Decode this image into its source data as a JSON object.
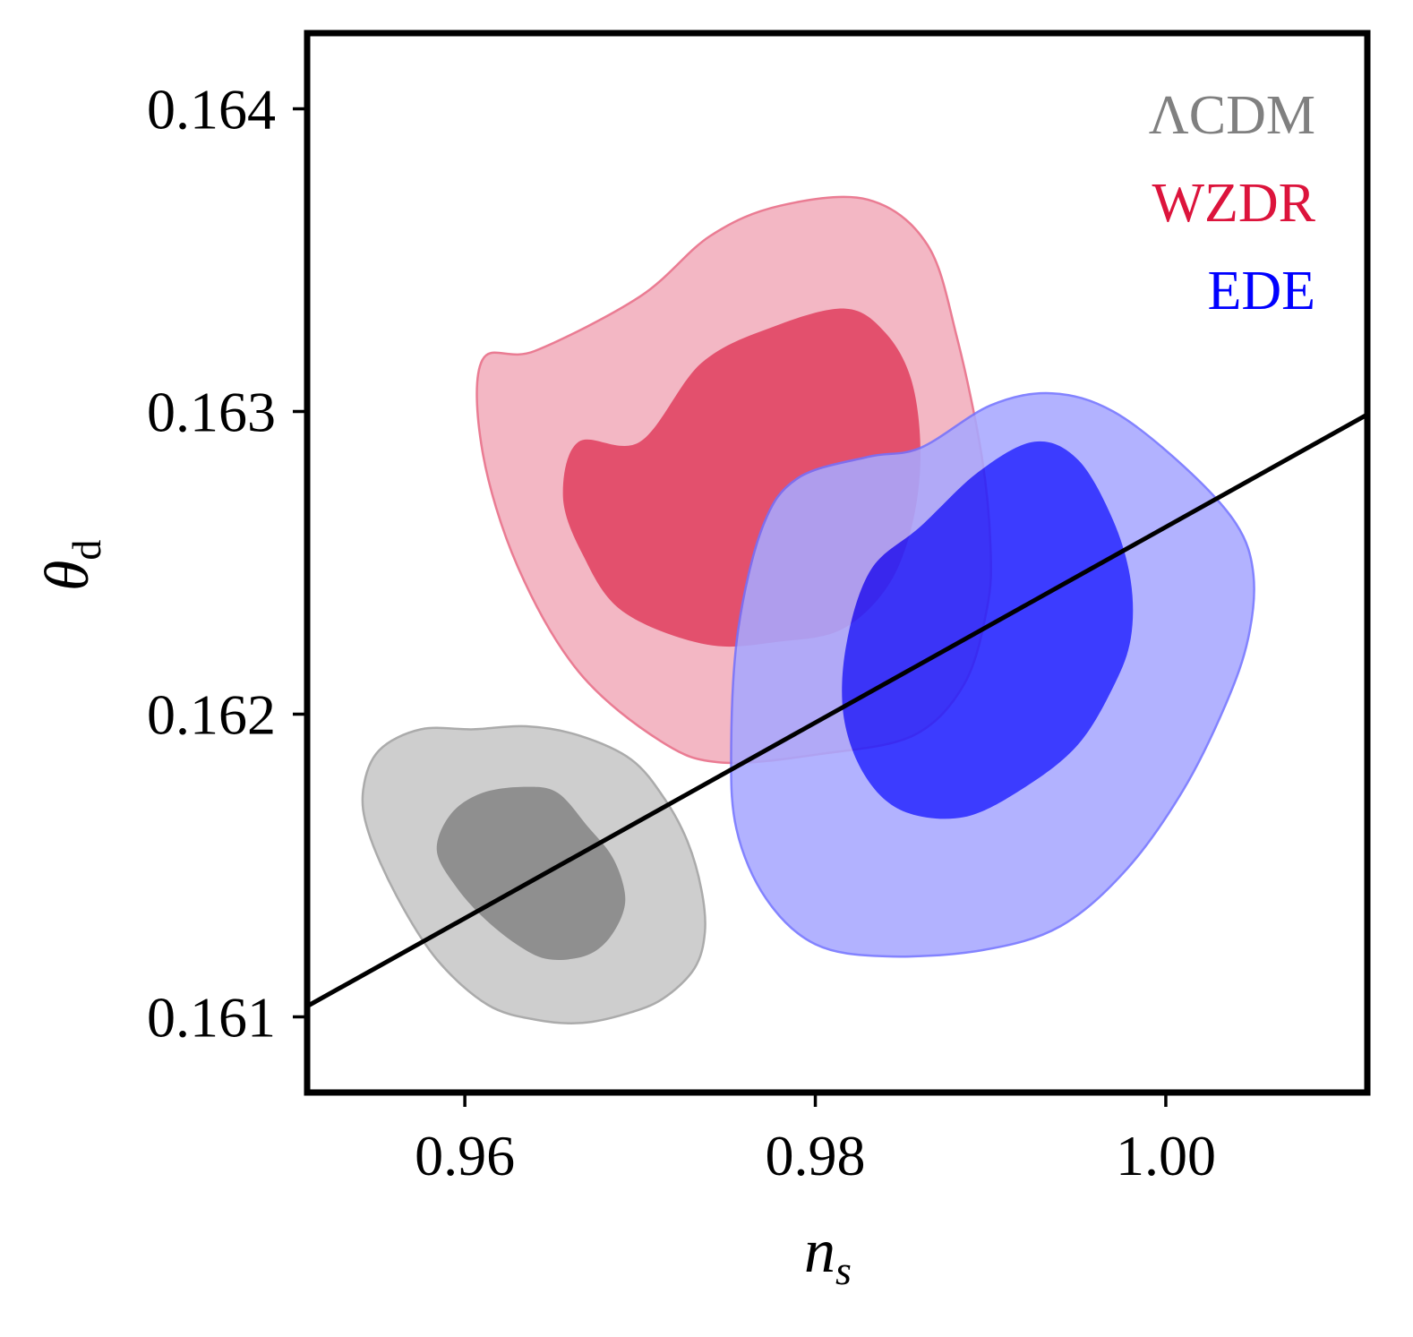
{
  "chart_data": {
    "type": "contour",
    "xaxis": {
      "label_main": "n",
      "label_sub": "s",
      "lim": [
        0.951,
        1.0115
      ],
      "ticks": [
        0.96,
        0.98,
        1.0
      ],
      "tick_labels": [
        "0.96",
        "0.98",
        "1.00"
      ]
    },
    "yaxis": {
      "label_main": "θ",
      "label_sub": "d",
      "lim": [
        0.16075,
        0.16425
      ],
      "ticks": [
        0.161,
        0.162,
        0.163,
        0.164
      ],
      "tick_labels": [
        "0.161",
        "0.162",
        "0.163",
        "0.164"
      ]
    },
    "legend": {
      "placement": "top-right",
      "entries": [
        {
          "label": "ΛCDM",
          "color": "#808080"
        },
        {
          "label": "WZDR",
          "color": "#dc143c"
        },
        {
          "label": "EDE",
          "color": "#0000ff"
        }
      ]
    },
    "series": [
      {
        "name": "ΛCDM",
        "outer_color": "#c8c8c8",
        "outer_stroke": "#a0a0a0",
        "inner_color": "#808080",
        "outer_contour": [
          [
            0.9605,
            0.16195
          ],
          [
            0.9635,
            0.16196
          ],
          [
            0.9665,
            0.16193
          ],
          [
            0.9695,
            0.16185
          ],
          [
            0.9714,
            0.16172
          ],
          [
            0.9727,
            0.16158
          ],
          [
            0.9735,
            0.16142
          ],
          [
            0.9737,
            0.16128
          ],
          [
            0.9731,
            0.16116
          ],
          [
            0.9713,
            0.16106
          ],
          [
            0.9692,
            0.16101
          ],
          [
            0.9667,
            0.16098
          ],
          [
            0.9641,
            0.16099
          ],
          [
            0.9613,
            0.16104
          ],
          [
            0.9584,
            0.16119
          ],
          [
            0.9561,
            0.1614
          ],
          [
            0.9545,
            0.16161
          ],
          [
            0.9542,
            0.16175
          ],
          [
            0.9551,
            0.16188
          ],
          [
            0.9575,
            0.16195
          ]
        ],
        "inner_contour": [
          [
            0.961,
            0.16174
          ],
          [
            0.9635,
            0.16176
          ],
          [
            0.9653,
            0.16174
          ],
          [
            0.967,
            0.16163
          ],
          [
            0.9684,
            0.16153
          ],
          [
            0.9691,
            0.16142
          ],
          [
            0.969,
            0.16134
          ],
          [
            0.9681,
            0.16125
          ],
          [
            0.9668,
            0.1612
          ],
          [
            0.9648,
            0.16119
          ],
          [
            0.9632,
            0.16123
          ],
          [
            0.9612,
            0.16132
          ],
          [
            0.9595,
            0.16143
          ],
          [
            0.9584,
            0.16155
          ],
          [
            0.9592,
            0.16167
          ]
        ]
      },
      {
        "name": "WZDR",
        "outer_color": "#f2aebc",
        "outer_stroke": "#e86a85",
        "inner_color": "#e0385a",
        "outer_contour": [
          [
            0.97,
            0.16338
          ],
          [
            0.974,
            0.16358
          ],
          [
            0.978,
            0.16368
          ],
          [
            0.983,
            0.1637
          ],
          [
            0.9864,
            0.16355
          ],
          [
            0.9881,
            0.16324
          ],
          [
            0.9895,
            0.16285
          ],
          [
            0.99,
            0.16255
          ],
          [
            0.9898,
            0.16235
          ],
          [
            0.9885,
            0.1621
          ],
          [
            0.9856,
            0.16193
          ],
          [
            0.9805,
            0.16187
          ],
          [
            0.9747,
            0.16184
          ],
          [
            0.9712,
            0.16191
          ],
          [
            0.9665,
            0.16214
          ],
          [
            0.963,
            0.16249
          ],
          [
            0.961,
            0.16287
          ],
          [
            0.961,
            0.16317
          ],
          [
            0.964,
            0.1632
          ]
        ],
        "inner_contour": [
          [
            0.97,
            0.1629
          ],
          [
            0.9735,
            0.16316
          ],
          [
            0.9776,
            0.16328
          ],
          [
            0.9817,
            0.16334
          ],
          [
            0.984,
            0.16326
          ],
          [
            0.9855,
            0.1631
          ],
          [
            0.986,
            0.16286
          ],
          [
            0.9855,
            0.16262
          ],
          [
            0.9841,
            0.16242
          ],
          [
            0.9815,
            0.16228
          ],
          [
            0.978,
            0.16224
          ],
          [
            0.9738,
            0.16223
          ],
          [
            0.969,
            0.16234
          ],
          [
            0.9667,
            0.16253
          ],
          [
            0.9656,
            0.16272
          ],
          [
            0.9665,
            0.1629
          ]
        ]
      },
      {
        "name": "EDE",
        "outer_color": "#a8a8ff",
        "outer_stroke": "#7272ff",
        "inner_color": "#2222ff",
        "outer_contour": [
          [
            0.986,
            0.16288
          ],
          [
            0.99,
            0.16302
          ],
          [
            0.9935,
            0.16306
          ],
          [
            0.997,
            0.163
          ],
          [
            1.001,
            0.16282
          ],
          [
            1.004,
            0.16263
          ],
          [
            1.005,
            0.16246
          ],
          [
            1.0047,
            0.16225
          ],
          [
            1.0034,
            0.16203
          ],
          [
            1.001,
            0.16175
          ],
          [
            0.9978,
            0.16149
          ],
          [
            0.994,
            0.1613
          ],
          [
            0.9895,
            0.16122
          ],
          [
            0.984,
            0.1612
          ],
          [
            0.98,
            0.16124
          ],
          [
            0.9772,
            0.16139
          ],
          [
            0.9755,
            0.16162
          ],
          [
            0.9752,
            0.1619
          ],
          [
            0.9756,
            0.16228
          ],
          [
            0.977,
            0.16262
          ],
          [
            0.979,
            0.16278
          ],
          [
            0.983,
            0.16285
          ]
        ],
        "inner_contour": [
          [
            0.986,
            0.16262
          ],
          [
            0.9893,
            0.1628
          ],
          [
            0.9925,
            0.1629
          ],
          [
            0.995,
            0.16284
          ],
          [
            0.997,
            0.16264
          ],
          [
            0.998,
            0.16244
          ],
          [
            0.998,
            0.16225
          ],
          [
            0.997,
            0.16209
          ],
          [
            0.995,
            0.1619
          ],
          [
            0.992,
            0.16176
          ],
          [
            0.9885,
            0.16166
          ],
          [
            0.985,
            0.16168
          ],
          [
            0.9828,
            0.1618
          ],
          [
            0.9816,
            0.162
          ],
          [
            0.9818,
            0.16224
          ],
          [
            0.9832,
            0.16248
          ]
        ]
      }
    ],
    "line": {
      "color": "#000000",
      "points": [
        [
          0.951,
          0.161035
        ],
        [
          1.0115,
          0.16299
        ]
      ]
    }
  }
}
